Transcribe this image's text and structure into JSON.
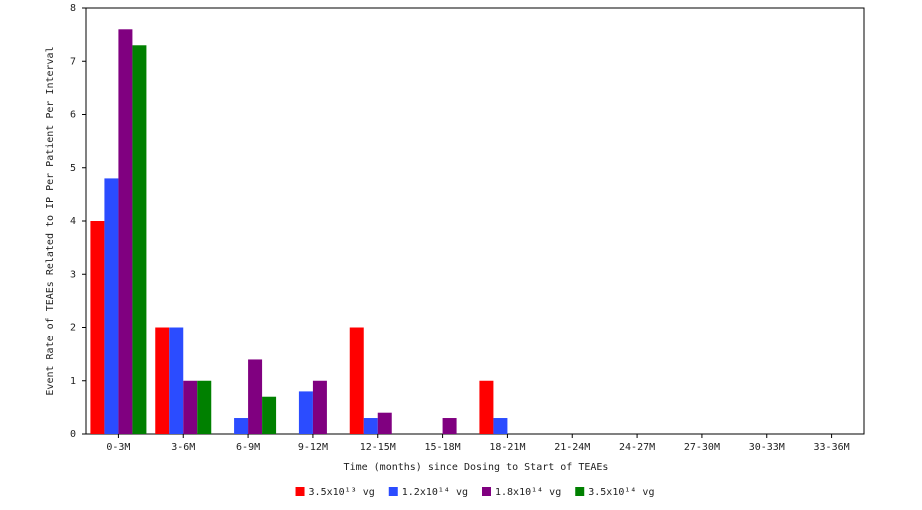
{
  "chart_data": {
    "type": "bar",
    "x_label": "Time (months) since Dosing to Start of TEAEs",
    "y_label": "Event Rate of TEAEs Related to IP Per Patient Per Interval",
    "categories": [
      "0-3M",
      "3-6M",
      "6-9M",
      "9-12M",
      "12-15M",
      "15-18M",
      "18-21M",
      "21-24M",
      "24-27M",
      "27-30M",
      "30-33M",
      "33-36M"
    ],
    "series": [
      {
        "name": "3.5x10¹³ vg",
        "color": "#ff0000",
        "values": [
          4,
          2,
          0,
          0,
          2,
          0,
          1,
          0,
          0,
          0,
          0,
          0
        ]
      },
      {
        "name": "1.2x10¹⁴ vg",
        "color": "#2b4cff",
        "values": [
          4.8,
          2,
          0.3,
          0.8,
          0.3,
          0,
          0.3,
          0,
          0,
          0,
          0,
          0
        ]
      },
      {
        "name": "1.8x10¹⁴ vg",
        "color": "#800080",
        "values": [
          7.6,
          1,
          1.4,
          1,
          0.4,
          0.3,
          0,
          0,
          0,
          0,
          0,
          0
        ]
      },
      {
        "name": "3.5x10¹⁴ vg",
        "color": "#008000",
        "values": [
          7.3,
          1,
          0.7,
          0,
          0,
          0,
          0,
          0,
          0,
          0,
          0,
          0
        ]
      }
    ],
    "ylim": [
      0,
      8
    ],
    "yticks": [
      0,
      1,
      2,
      3,
      4,
      5,
      6,
      7,
      8
    ]
  }
}
